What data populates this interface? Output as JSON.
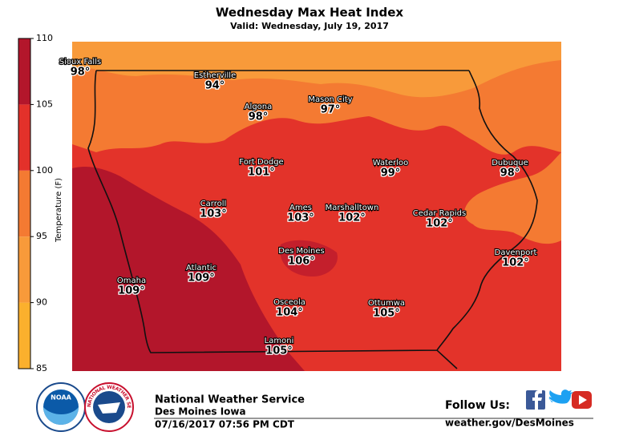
{
  "header": {
    "title": "Wednesday Max Heat Index",
    "subtitle": "Valid: Wednesday, July 19, 2017"
  },
  "colorbar": {
    "label": "Temperature (F)",
    "lim": [
      85,
      110
    ],
    "ticks": [
      85,
      90,
      95,
      100,
      105,
      110
    ],
    "colors": [
      "#fbb02d",
      "#f89a3a",
      "#f47a32",
      "#e3312a",
      "#b3162b"
    ]
  },
  "cities": [
    {
      "name": "Sioux Falls",
      "temp": "98°"
    },
    {
      "name": "Estherville",
      "temp": "94°"
    },
    {
      "name": "Algona",
      "temp": "98°"
    },
    {
      "name": "Mason City",
      "temp": "97°"
    },
    {
      "name": "Fort Dodge",
      "temp": "101°"
    },
    {
      "name": "Waterloo",
      "temp": "99°"
    },
    {
      "name": "Dubuque",
      "temp": "98°"
    },
    {
      "name": "Carroll",
      "temp": "103°"
    },
    {
      "name": "Ames",
      "temp": "103°"
    },
    {
      "name": "Marshalltown",
      "temp": "102°"
    },
    {
      "name": "Cedar Rapids",
      "temp": "102°"
    },
    {
      "name": "Des Moines",
      "temp": "106°"
    },
    {
      "name": "Davenport",
      "temp": "102°"
    },
    {
      "name": "Atlantic",
      "temp": "109°"
    },
    {
      "name": "Omaha",
      "temp": "109°"
    },
    {
      "name": "Osceola",
      "temp": "104°"
    },
    {
      "name": "Ottumwa",
      "temp": "105°"
    },
    {
      "name": "Lamoni",
      "temp": "105°"
    }
  ],
  "footer": {
    "org": "National Weather Service",
    "office": "Des Moines Iowa",
    "issued": "07/16/2017 07:56 PM CDT",
    "follow": "Follow Us:",
    "url": "weather.gov/DesMoines",
    "noaa": "NOAA",
    "nws_ring": "NATIONAL WEATHER SERVICE"
  }
}
